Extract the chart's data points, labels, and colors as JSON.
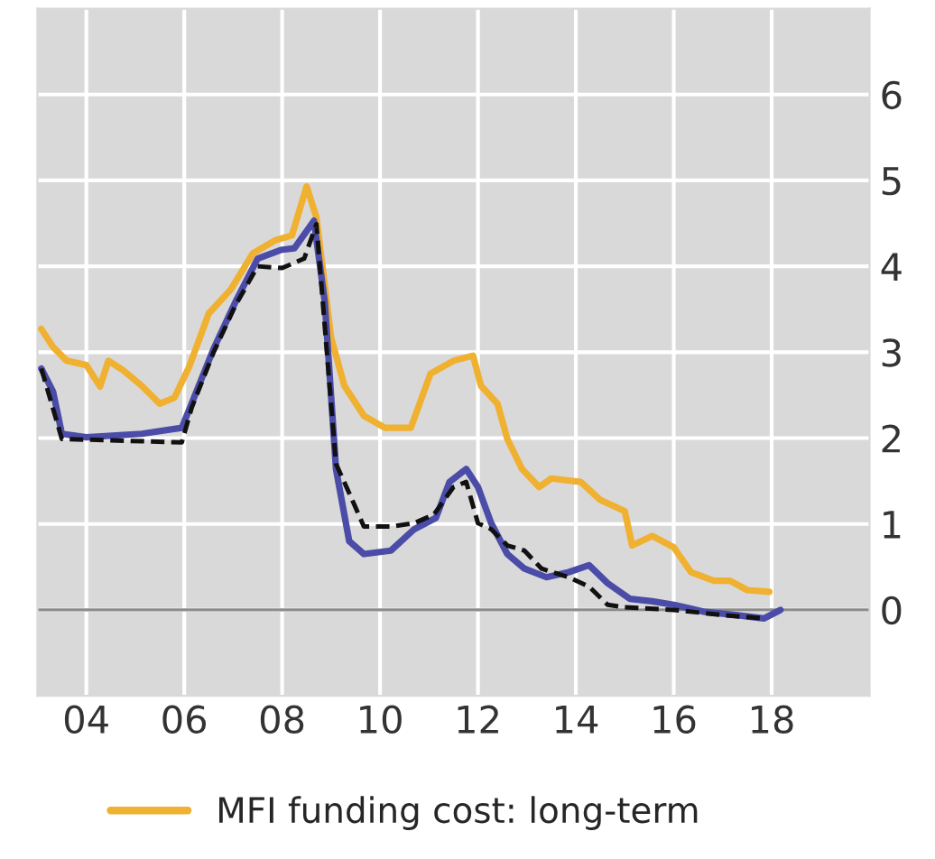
{
  "chart_data": {
    "type": "line",
    "series": [
      {
        "name": "MFI funding cost: long-term",
        "color": "#f0b030",
        "line_style": "solid",
        "x": [
          2003.08,
          2003.32,
          2003.6,
          2004.0,
          2004.28,
          2004.45,
          2004.75,
          2005.13,
          2005.5,
          2005.8,
          2006.1,
          2006.5,
          2006.95,
          2007.4,
          2007.85,
          2008.2,
          2008.5,
          2008.7,
          2009.0,
          2009.27,
          2009.67,
          2010.1,
          2010.63,
          2011.03,
          2011.5,
          2011.9,
          2012.06,
          2012.4,
          2012.6,
          2012.9,
          2013.25,
          2013.5,
          2014.1,
          2014.5,
          2015.0,
          2015.15,
          2015.56,
          2016.0,
          2016.35,
          2016.82,
          2017.15,
          2017.5,
          2017.95
        ],
        "values": [
          3.27,
          3.06,
          2.9,
          2.85,
          2.6,
          2.9,
          2.79,
          2.61,
          2.4,
          2.47,
          2.83,
          3.45,
          3.73,
          4.15,
          4.3,
          4.36,
          4.93,
          4.57,
          3.17,
          2.61,
          2.26,
          2.12,
          2.12,
          2.75,
          2.9,
          2.96,
          2.61,
          2.4,
          1.99,
          1.64,
          1.43,
          1.53,
          1.49,
          1.28,
          1.15,
          0.75,
          0.86,
          0.73,
          0.44,
          0.34,
          0.34,
          0.23,
          0.21
        ]
      },
      {
        "color": "#4b4ca8",
        "line_style": "solid",
        "x": [
          2003.08,
          2003.32,
          2003.5,
          2004.0,
          2005.13,
          2005.95,
          2006.15,
          2006.6,
          2007.05,
          2007.5,
          2007.97,
          2008.25,
          2008.65,
          2008.87,
          2009.1,
          2009.37,
          2009.67,
          2010.22,
          2010.7,
          2011.14,
          2011.42,
          2011.76,
          2012.0,
          2012.27,
          2012.6,
          2012.95,
          2013.4,
          2013.86,
          2014.27,
          2014.65,
          2015.1,
          2015.56,
          2016.0,
          2016.6,
          2017.27,
          2017.84,
          2018.18
        ],
        "values": [
          2.81,
          2.54,
          2.05,
          2.01,
          2.05,
          2.12,
          2.4,
          3.04,
          3.59,
          4.09,
          4.19,
          4.21,
          4.53,
          3.59,
          1.64,
          0.8,
          0.65,
          0.69,
          0.94,
          1.07,
          1.49,
          1.64,
          1.43,
          1.01,
          0.65,
          0.48,
          0.38,
          0.44,
          0.52,
          0.31,
          0.13,
          0.1,
          0.06,
          -0.02,
          -0.06,
          -0.1,
          0.0
        ]
      },
      {
        "color": "#111111",
        "line_style": "dashed",
        "x": [
          2003.08,
          2003.5,
          2005.95,
          2006.15,
          2006.6,
          2007.05,
          2007.5,
          2008.0,
          2008.45,
          2008.7,
          2009.1,
          2009.37,
          2009.67,
          2010.22,
          2010.7,
          2011.1,
          2011.5,
          2011.76,
          2012.0,
          2012.27,
          2012.6,
          2012.95,
          2013.3,
          2013.86,
          2014.27,
          2014.65,
          2015.0,
          2016.0,
          2017.0,
          2017.84
        ],
        "values": [
          2.81,
          1.99,
          1.95,
          2.35,
          3.0,
          3.55,
          4.0,
          3.98,
          4.09,
          4.49,
          1.7,
          1.36,
          0.97,
          0.97,
          1.01,
          1.11,
          1.43,
          1.49,
          1.01,
          0.94,
          0.75,
          0.69,
          0.48,
          0.38,
          0.27,
          0.06,
          0.03,
          0.0,
          -0.06,
          -0.1
        ]
      }
    ],
    "xlim": [
      2003,
      2020
    ],
    "xticks": [
      {
        "value": 2004,
        "label": "04"
      },
      {
        "value": 2006,
        "label": "06"
      },
      {
        "value": 2008,
        "label": "08"
      },
      {
        "value": 2010,
        "label": "10"
      },
      {
        "value": 2012,
        "label": "12"
      },
      {
        "value": 2014,
        "label": "14"
      },
      {
        "value": 2016,
        "label": "16"
      },
      {
        "value": 2018,
        "label": "18"
      }
    ],
    "ylim": [
      -1,
      7
    ],
    "yticks": [
      0,
      1,
      2,
      3,
      4,
      5,
      6
    ],
    "ref_lines": [
      {
        "axis": "y",
        "value": 0,
        "color": "#8c8c8c"
      }
    ],
    "grid": true,
    "legend": "bottom"
  }
}
